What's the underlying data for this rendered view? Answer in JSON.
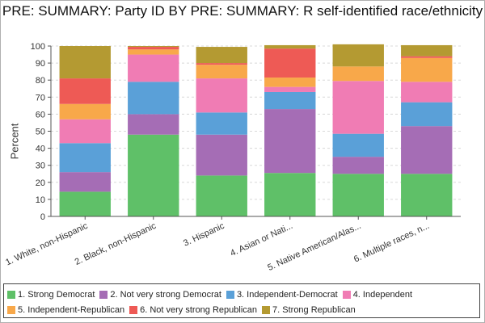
{
  "chart_data": {
    "type": "bar",
    "stacked": true,
    "title": "PRE: SUMMARY: Party ID BY PRE: SUMMARY: R self-identified race/ethnicity",
    "ylabel": "Percent",
    "xlabel": "",
    "ylim": [
      0,
      100
    ],
    "yticks": [
      0,
      10,
      20,
      30,
      40,
      50,
      60,
      70,
      80,
      90,
      100
    ],
    "grid": true,
    "legend_position": "bottom",
    "categories": [
      "1. White, non-Hispanic",
      "2. Black, non-Hispanic",
      "3. Hispanic",
      "4. Asian or Nati...",
      "5. Native American/Alas...",
      "6. Multiple races, n..."
    ],
    "series": [
      {
        "name": "1. Strong Democrat",
        "color": "#5fc068",
        "values": [
          14.5,
          48,
          24,
          25.5,
          25,
          25
        ]
      },
      {
        "name": "2. Not very strong Democrat",
        "color": "#a56db5",
        "values": [
          11.5,
          12,
          24,
          37.5,
          10,
          28
        ]
      },
      {
        "name": "3. Independent-Democrat",
        "color": "#5aa0d8",
        "values": [
          17,
          19,
          13,
          10,
          13.5,
          14
        ]
      },
      {
        "name": "4. Independent",
        "color": "#f07cb4",
        "values": [
          14,
          16,
          20,
          3,
          31,
          12
        ]
      },
      {
        "name": "5. Independent-Republican",
        "color": "#f8a84a",
        "values": [
          9,
          3,
          8,
          5.5,
          8.5,
          14
        ]
      },
      {
        "name": "6. Not very strong Republican",
        "color": "#ee5a55",
        "values": [
          15,
          1.5,
          1,
          17,
          0,
          1
        ]
      },
      {
        "name": "7. Strong Republican",
        "color": "#b49a32",
        "values": [
          19,
          0.5,
          9.5,
          2,
          13,
          6.5
        ]
      }
    ]
  }
}
